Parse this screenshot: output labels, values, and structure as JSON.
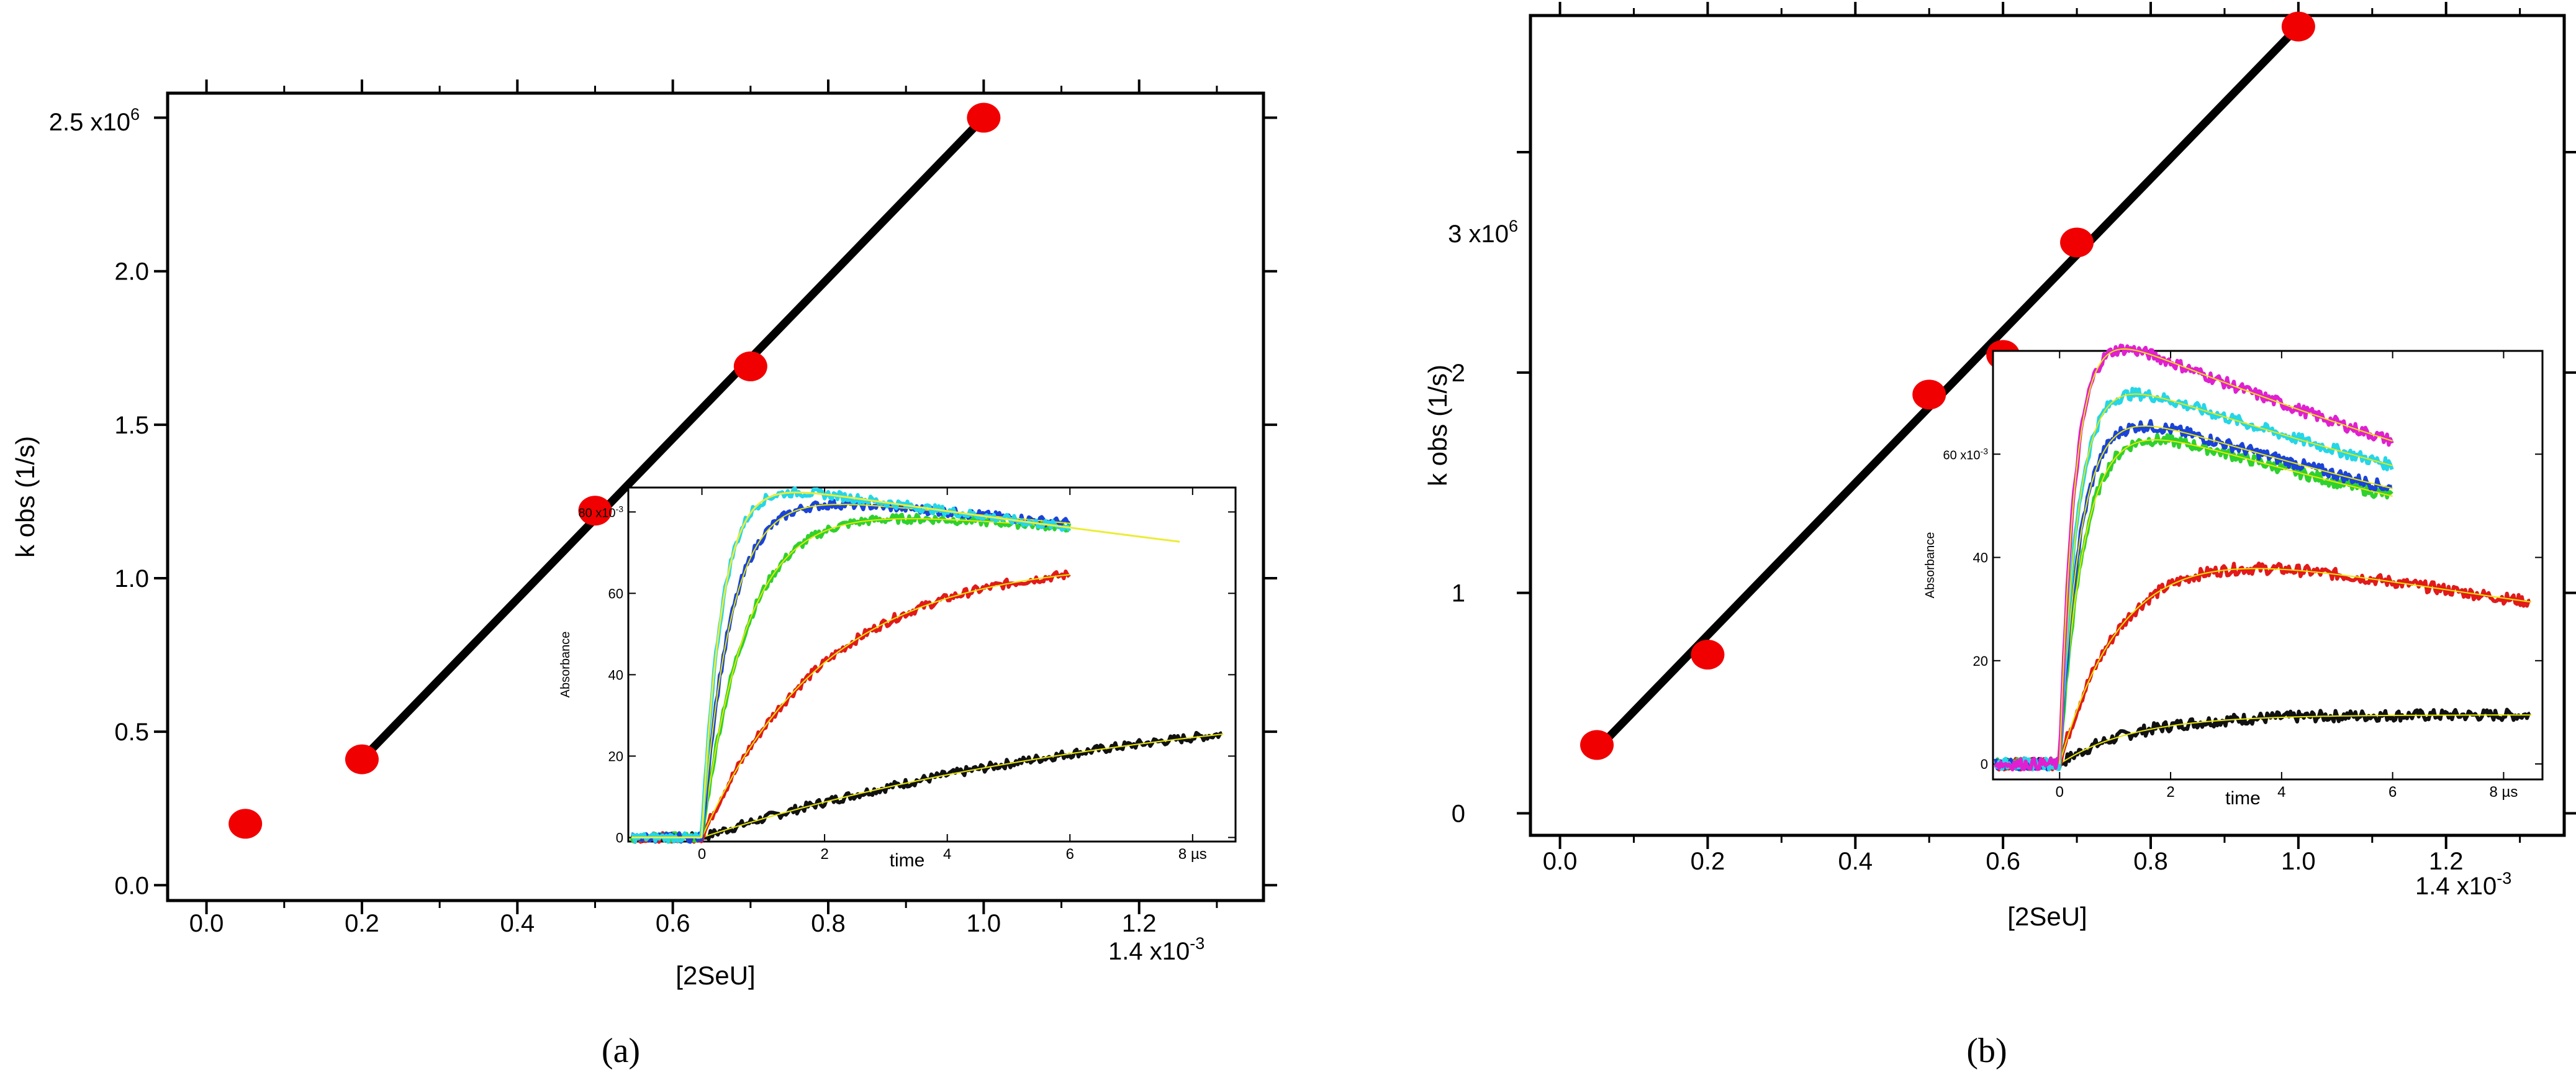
{
  "figure": {
    "panel_labels": [
      "(a)",
      "(b)"
    ]
  },
  "colors": {
    "points": "#f00000",
    "fit_line": "#000000",
    "frame": "#000000",
    "inset_fit": "#e8e800"
  },
  "chart_data": [
    {
      "id": "a",
      "type": "scatter",
      "title": "",
      "xlabel": "[2SeU]",
      "ylabel": "k obs (1/s)",
      "xlim": [
        -5e-05,
        0.00136
      ],
      "ylim": [
        -0.05,
        2.58
      ],
      "x_exponent_label": "1.4 x10",
      "x_exponent_power": "-3",
      "x_ticks": [
        {
          "value": 0.0,
          "label": "0.0"
        },
        {
          "value": 0.0002,
          "label": "0.2"
        },
        {
          "value": 0.0004,
          "label": "0.4"
        },
        {
          "value": 0.0006,
          "label": "0.6"
        },
        {
          "value": 0.0008,
          "label": "0.8"
        },
        {
          "value": 0.001,
          "label": "1.0"
        },
        {
          "value": 0.0012,
          "label": "1.2"
        }
      ],
      "y_ticks": [
        {
          "value": 0.0,
          "label": "0.0"
        },
        {
          "value": 0.5,
          "label": "0.5"
        },
        {
          "value": 1.0,
          "label": "1.0"
        },
        {
          "value": 1.5,
          "label": "1.5"
        },
        {
          "value": 2.0,
          "label": "2.0"
        }
      ],
      "y_exponent_label": "2.5 x10",
      "y_exponent_power": "6",
      "y_unit": 1000000,
      "points": [
        {
          "x": 5e-05,
          "y": 0.2
        },
        {
          "x": 0.0002,
          "y": 0.41
        },
        {
          "x": 0.0005,
          "y": 1.22
        },
        {
          "x": 0.0007,
          "y": 1.69
        },
        {
          "x": 0.001,
          "y": 2.5
        }
      ],
      "fit_line": {
        "x": [
          0.0002,
          0.001
        ],
        "y": [
          0.41,
          2.5
        ]
      },
      "inset": {
        "type": "line",
        "xlabel": "time",
        "ylabel": "Absorbance",
        "xlim": [
          -1.2,
          8.7
        ],
        "ylim": [
          -1,
          86
        ],
        "x_ticks": [
          "0",
          "2",
          "4",
          "6",
          "8 µs"
        ],
        "x_tick_values": [
          0,
          2,
          4,
          6,
          8
        ],
        "y_ticks": [
          "0",
          "20",
          "40",
          "60",
          "80 x10"
        ],
        "y_tick_values": [
          0,
          20,
          40,
          60,
          80
        ],
        "y_exponent_power": "-3",
        "series": [
          {
            "name": "black",
            "color": "#111111",
            "t_end": 8.5,
            "amp": 38,
            "k_rise": 0.13,
            "k_decay": 0.0,
            "noise_end": 2.2
          },
          {
            "name": "red",
            "color": "#e21a1a",
            "t_end": 6.0,
            "amp": 68,
            "k_rise": 0.5,
            "k_decay": 0.0
          },
          {
            "name": "green",
            "color": "#2fd12f",
            "t_end": 6.0,
            "amp": 83,
            "k_rise": 1.35,
            "k_decay": 0.014
          },
          {
            "name": "blue",
            "color": "#1b43d8",
            "t_end": 6.0,
            "amp": 86,
            "k_rise": 2.1,
            "k_decay": 0.018
          },
          {
            "name": "cyan",
            "color": "#25d6e8",
            "t_end": 6.0,
            "amp": 89,
            "k_rise": 3.1,
            "k_decay": 0.026
          },
          {
            "name": "fit-tail",
            "color": "#ecec35",
            "t_end": 7.8,
            "amp": 89,
            "k_rise": 3.1,
            "k_decay": 0.026
          }
        ]
      }
    },
    {
      "id": "b",
      "type": "scatter",
      "title": "",
      "xlabel": "[2SeU]",
      "ylabel": "k obs (1/s)",
      "xlim": [
        -4e-05,
        0.00136
      ],
      "ylim": [
        -0.1,
        3.62
      ],
      "x_exponent_label": "1.4 x10",
      "x_exponent_power": "-3",
      "x_ticks": [
        {
          "value": 0.0,
          "label": "0.0"
        },
        {
          "value": 0.0002,
          "label": "0.2"
        },
        {
          "value": 0.0004,
          "label": "0.4"
        },
        {
          "value": 0.0006,
          "label": "0.6"
        },
        {
          "value": 0.0008,
          "label": "0.8"
        },
        {
          "value": 0.001,
          "label": "1.0"
        },
        {
          "value": 0.0012,
          "label": "1.2"
        }
      ],
      "y_ticks": [
        {
          "value": 0,
          "label": "0"
        },
        {
          "value": 1,
          "label": "1"
        },
        {
          "value": 2,
          "label": "2"
        }
      ],
      "y_exponent_label": "3 x10",
      "y_exponent_power": "6",
      "y_exponent_value": 3,
      "y_unit": 1000000,
      "points": [
        {
          "x": 5e-05,
          "y": 0.31
        },
        {
          "x": 0.0002,
          "y": 0.72
        },
        {
          "x": 0.0005,
          "y": 1.9
        },
        {
          "x": 0.0006,
          "y": 2.08
        },
        {
          "x": 0.0007,
          "y": 2.59
        },
        {
          "x": 0.001,
          "y": 3.57
        }
      ],
      "fit_line": {
        "x": [
          5e-05,
          0.001
        ],
        "y": [
          0.29,
          3.57
        ]
      },
      "inset": {
        "type": "line",
        "xlabel": "time",
        "ylabel": "Absorbance",
        "xlim": [
          -1.2,
          8.7
        ],
        "ylim": [
          -3,
          80
        ],
        "x_ticks": [
          "0",
          "2",
          "4",
          "6",
          "8 µs"
        ],
        "x_tick_values": [
          0,
          2,
          4,
          6,
          8
        ],
        "y_ticks": [
          "0",
          "20",
          "40",
          "60 x10"
        ],
        "y_tick_values": [
          0,
          20,
          40,
          60
        ],
        "y_exponent_power": "-3",
        "series": [
          {
            "name": "black",
            "color": "#111111",
            "t_end": 8.5,
            "amp": 9.5,
            "k_rise": 0.75,
            "k_decay": 0.0
          },
          {
            "name": "red",
            "color": "#e21a1a",
            "t_end": 8.5,
            "amp": 48,
            "k_rise": 0.8,
            "k_decay": 0.05
          },
          {
            "name": "green",
            "color": "#2fd12f",
            "t_end": 6.0,
            "amp": 70,
            "k_rise": 2.2,
            "k_decay": 0.05
          },
          {
            "name": "blue",
            "color": "#1b43d8",
            "t_end": 6.0,
            "amp": 72,
            "k_rise": 2.6,
            "k_decay": 0.05
          },
          {
            "name": "cyan",
            "color": "#25d6e8",
            "t_end": 6.0,
            "amp": 78,
            "k_rise": 3.0,
            "k_decay": 0.05
          },
          {
            "name": "magenta",
            "color": "#e020d0",
            "t_end": 6.0,
            "amp": 87,
            "k_rise": 3.6,
            "k_decay": 0.055
          }
        ]
      }
    }
  ]
}
